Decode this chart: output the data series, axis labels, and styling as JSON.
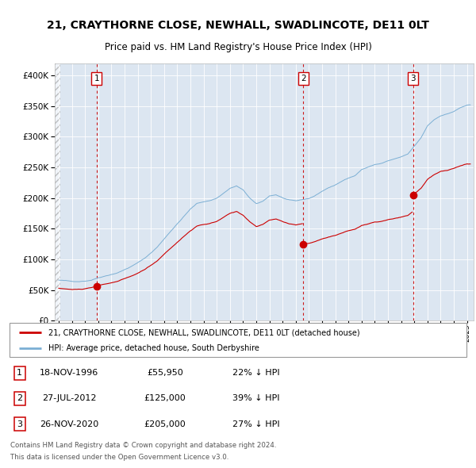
{
  "title": "21, CRAYTHORNE CLOSE, NEWHALL, SWADLINCOTE, DE11 0LT",
  "subtitle": "Price paid vs. HM Land Registry's House Price Index (HPI)",
  "legend_line1": "21, CRAYTHORNE CLOSE, NEWHALL, SWADLINCOTE, DE11 0LT (detached house)",
  "legend_line2": "HPI: Average price, detached house, South Derbyshire",
  "footer1": "Contains HM Land Registry data © Crown copyright and database right 2024.",
  "footer2": "This data is licensed under the Open Government Licence v3.0.",
  "sales": [
    {
      "num": 1,
      "date": "18-NOV-1996",
      "price": 55950,
      "pct": "22%",
      "dir": "↓"
    },
    {
      "num": 2,
      "date": "27-JUL-2012",
      "price": 125000,
      "pct": "39%",
      "dir": "↓"
    },
    {
      "num": 3,
      "date": "26-NOV-2020",
      "price": 205000,
      "pct": "27%",
      "dir": "↓"
    }
  ],
  "sale_dates_decimal": [
    1996.88,
    2012.57,
    2020.9
  ],
  "sale_prices": [
    55950,
    125000,
    205000
  ],
  "hpi_color": "#7bafd4",
  "price_color": "#cc0000",
  "background_color": "#dce6f1",
  "ylim": [
    0,
    420000
  ],
  "xlim_start": 1993.7,
  "xlim_end": 2025.5
}
